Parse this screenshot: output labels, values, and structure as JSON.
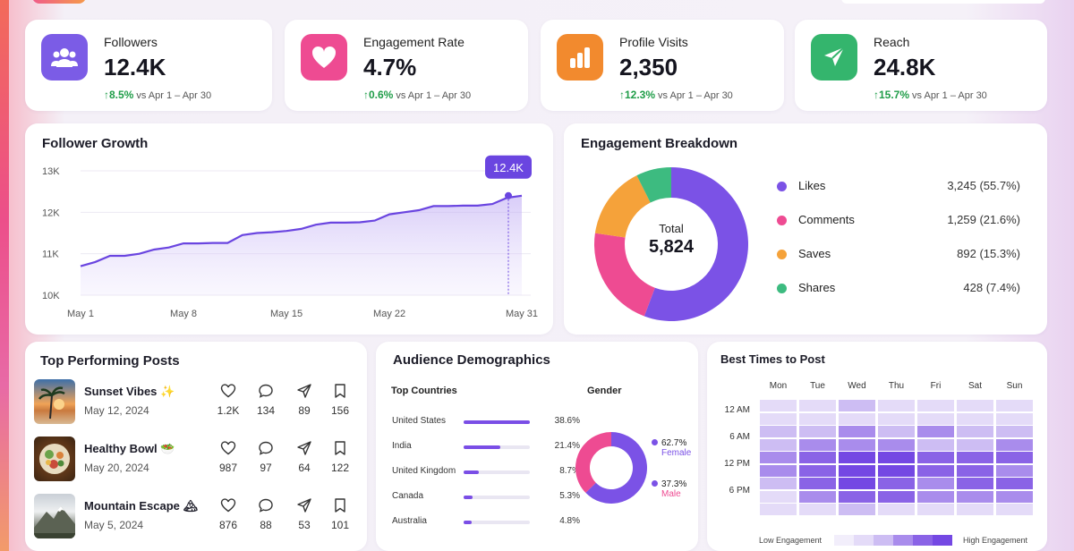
{
  "kpis": [
    {
      "label": "Followers",
      "value": "12.4K",
      "change": "8.5%",
      "compare": "vs Apr 1 – Apr 30",
      "icon": "users-icon",
      "color": "#7b5ce6"
    },
    {
      "label": "Engagement Rate",
      "value": "4.7%",
      "change": "0.6%",
      "compare": "vs Apr 1 – Apr 30",
      "icon": "heart-icon",
      "color": "#ee4b92"
    },
    {
      "label": "Profile Visits",
      "value": "2,350",
      "change": "12.3%",
      "compare": "vs Apr 1 – Apr 30",
      "icon": "bar-chart-icon",
      "color": "#f28a2e"
    },
    {
      "label": "Reach",
      "value": "24.8K",
      "change": "15.7%",
      "compare": "vs Apr 1 – Apr 30",
      "icon": "send-icon",
      "color": "#34b56d"
    }
  ],
  "follower_growth": {
    "title": "Follower Growth",
    "tooltip": "12.4K"
  },
  "engagement": {
    "title": "Engagement Breakdown",
    "total_label": "Total",
    "total_value": "5,824",
    "items": [
      {
        "name": "Likes",
        "amount": "3,245 (55.7%)",
        "color": "#7b52e6"
      },
      {
        "name": "Comments",
        "amount": "1,259 (21.6%)",
        "color": "#ee4b92"
      },
      {
        "name": "Saves",
        "amount": "892 (15.3%)",
        "color": "#f5a23a"
      },
      {
        "name": "Shares",
        "amount": "428 (7.4%)",
        "color": "#3dbb80"
      }
    ]
  },
  "posts": {
    "title": "Top Performing Posts",
    "items": [
      {
        "name": "Sunset Vibes ✨",
        "date": "May 12, 2024",
        "likes": "1.2K",
        "comments": "134",
        "shares": "89",
        "saves": "156"
      },
      {
        "name": "Healthy Bowl 🥗",
        "date": "May 20, 2024",
        "likes": "987",
        "comments": "97",
        "shares": "64",
        "saves": "122"
      },
      {
        "name": "Mountain Escape 🏔",
        "date": "May 5, 2024",
        "likes": "876",
        "comments": "88",
        "shares": "53",
        "saves": "101"
      }
    ]
  },
  "demographics": {
    "title": "Audience Demographics",
    "countries_title": "Top Countries",
    "countries": [
      {
        "name": "United States",
        "pct": "38.6%",
        "value": 38.6
      },
      {
        "name": "India",
        "pct": "21.4%",
        "value": 21.4
      },
      {
        "name": "United Kingdom",
        "pct": "8.7%",
        "value": 8.7
      },
      {
        "name": "Canada",
        "pct": "5.3%",
        "value": 5.3
      },
      {
        "name": "Australia",
        "pct": "4.8%",
        "value": 4.8
      }
    ],
    "gender_title": "Gender",
    "gender": [
      {
        "pct": "62.7%",
        "label": "Female",
        "value": 62.7,
        "color": "#7b52e6"
      },
      {
        "pct": "37.3%",
        "label": "Male",
        "value": 37.3,
        "color": "#ee4b92"
      }
    ]
  },
  "best_times": {
    "title": "Best Times to Post",
    "days": [
      "Mon",
      "Tue",
      "Wed",
      "Thu",
      "Fri",
      "Sat",
      "Sun"
    ],
    "times": [
      "12 AM",
      "6 AM",
      "12 PM",
      "6 PM"
    ],
    "low_label": "Low Engagement",
    "high_label": "High Engagement",
    "levels": [
      [
        1,
        1,
        2,
        1,
        1,
        1,
        1
      ],
      [
        1,
        1,
        1,
        1,
        1,
        1,
        1
      ],
      [
        2,
        2,
        3,
        2,
        3,
        2,
        2
      ],
      [
        2,
        3,
        3,
        3,
        2,
        2,
        3
      ],
      [
        3,
        4,
        5,
        5,
        4,
        4,
        4
      ],
      [
        3,
        4,
        5,
        5,
        4,
        4,
        3
      ],
      [
        2,
        4,
        5,
        4,
        3,
        4,
        4
      ],
      [
        1,
        3,
        4,
        4,
        3,
        3,
        3
      ],
      [
        1,
        1,
        2,
        1,
        1,
        1,
        1
      ]
    ]
  },
  "chart_data": {
    "type": "area",
    "title": "Follower Growth",
    "x_ticks": [
      "May 1",
      "May 8",
      "May 15",
      "May 22",
      "May 31"
    ],
    "y_ticks": [
      "10K",
      "11K",
      "12K",
      "13K"
    ],
    "ylim": [
      10000,
      13000
    ],
    "x": [
      1,
      2,
      3,
      4,
      5,
      6,
      7,
      8,
      9,
      10,
      11,
      12,
      13,
      14,
      15,
      16,
      17,
      18,
      19,
      20,
      21,
      22,
      23,
      24,
      25,
      26,
      27,
      28,
      29,
      30,
      31
    ],
    "values": [
      10700,
      10800,
      10950,
      10950,
      11000,
      11100,
      11150,
      11250,
      11250,
      11260,
      11260,
      11450,
      11500,
      11520,
      11550,
      11600,
      11700,
      11750,
      11750,
      11760,
      11800,
      11950,
      12000,
      12050,
      12150,
      12150,
      12160,
      12160,
      12200,
      12350,
      12400
    ],
    "series_color": "#7b52e6"
  }
}
